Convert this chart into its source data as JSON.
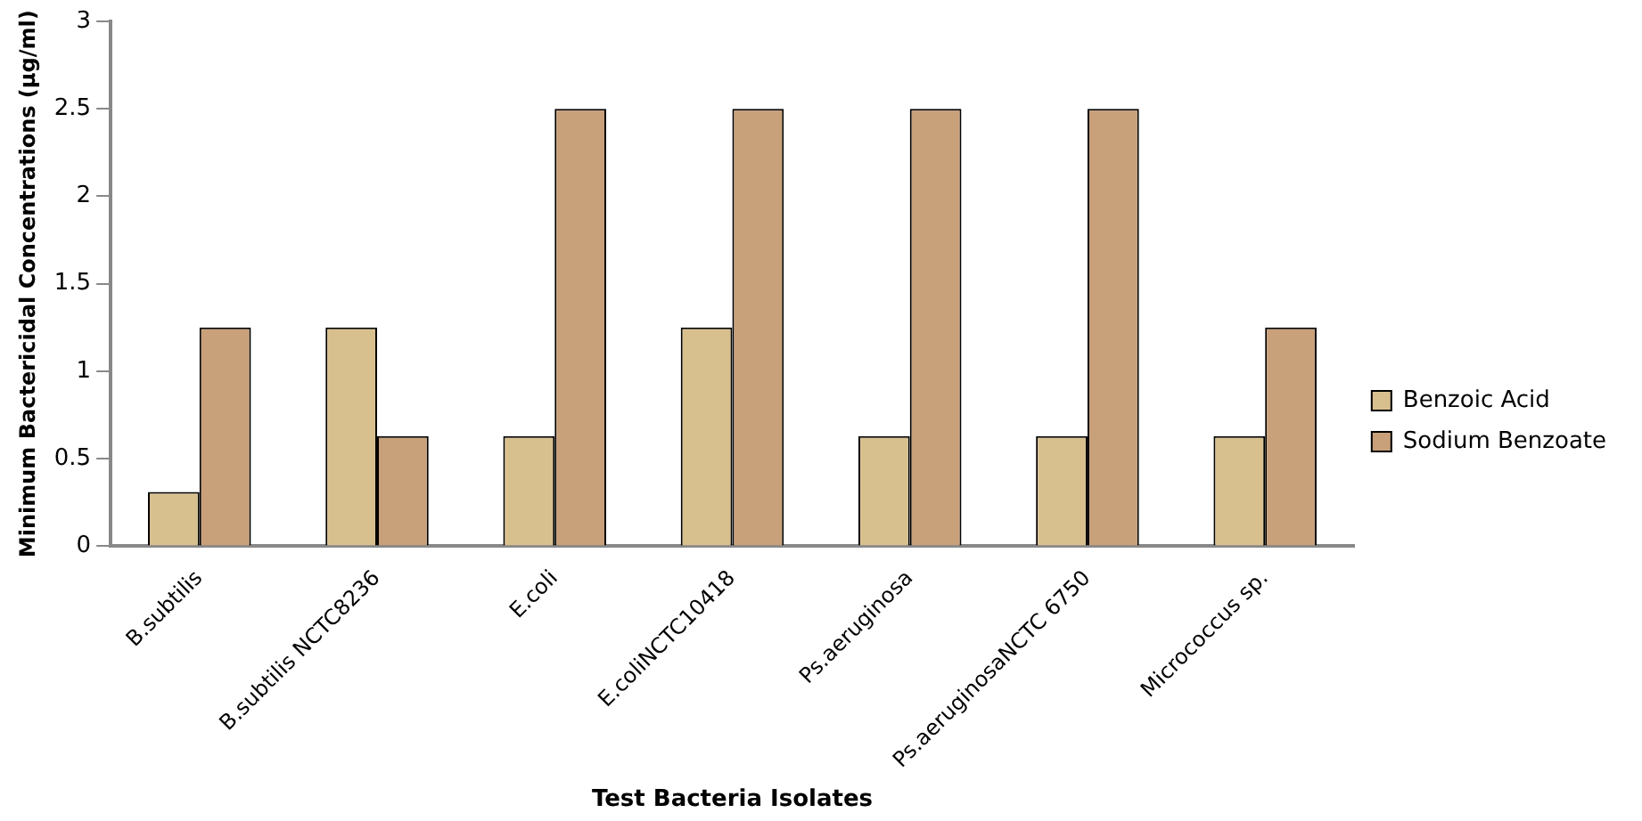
{
  "chart_data": {
    "type": "bar",
    "xlabel": "Test Bacteria Isolates",
    "ylabel": "Minimum Bactericidal Concentrations (µg/ml)",
    "categories": [
      "B.subtilis",
      "B.subtilis NCTC8236",
      "E.coli",
      "E.coliNCTC10418",
      "Ps.aeruginosa",
      "Ps.aeruginosaNCTC 6750",
      "Micrococcus sp."
    ],
    "series": [
      {
        "name": "Benzoic Acid",
        "color": "#d8c08e",
        "values": [
          0.31,
          1.25,
          0.63,
          1.25,
          0.63,
          0.63,
          0.63
        ]
      },
      {
        "name": "Sodium Benzoate",
        "color": "#c8a07a",
        "values": [
          1.25,
          0.63,
          2.5,
          2.5,
          2.5,
          2.5,
          1.25
        ]
      }
    ],
    "ylim": [
      0,
      3
    ],
    "yticks": [
      0,
      0.5,
      1,
      1.5,
      2,
      2.5,
      3
    ],
    "grid": false,
    "legend": "right"
  }
}
